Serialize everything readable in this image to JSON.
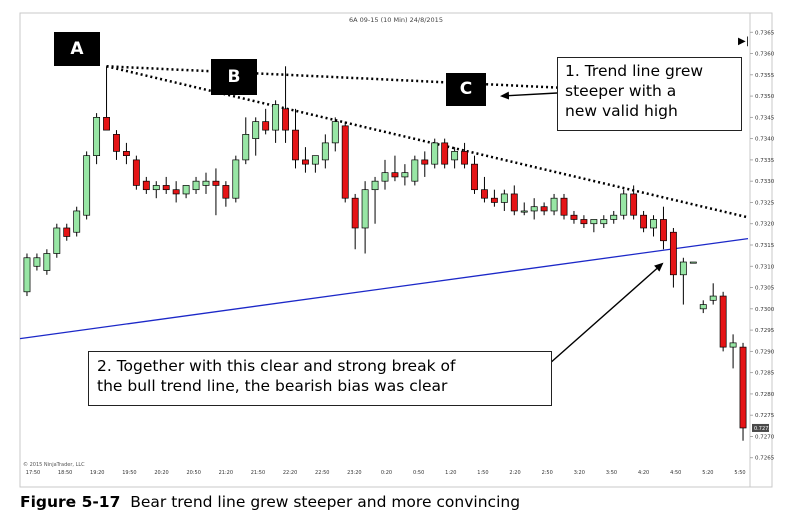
{
  "chart_data": {
    "type": "candlestick",
    "title": "6A 09-15 (10 Min)  24/8/2015",
    "xlabel": "",
    "ylabel": "",
    "ylim": [
      0.7264,
      0.7366
    ],
    "y_tick_labels": [
      "0.7365",
      "0.7360",
      "0.7355",
      "0.7350",
      "0.7345",
      "0.7340",
      "0.7335",
      "0.7330",
      "0.7325",
      "0.7320",
      "0.7315",
      "0.7310",
      "0.7305",
      "0.7300",
      "0.7295",
      "0.7290",
      "0.7285",
      "0.7280",
      "0.7275",
      "0.7270",
      "0.7265"
    ],
    "x_tick_labels": [
      "17:50",
      "18:50",
      "19:20",
      "19:50",
      "20:20",
      "20:50",
      "21:20",
      "21:50",
      "22:20",
      "22:50",
      "23:20",
      "0:20",
      "0:50",
      "1:20",
      "1:50",
      "2:20",
      "2:50",
      "3:20",
      "3:50",
      "4:20",
      "4:50",
      "5:20",
      "5:50"
    ],
    "copyright": "© 2015 NinjaTrader, LLC",
    "last_price_label": "0.7272",
    "candles": [
      {
        "o": 0.7304,
        "h": 0.7313,
        "l": 0.7303,
        "c": 0.7312
      },
      {
        "o": 0.731,
        "h": 0.7313,
        "l": 0.7309,
        "c": 0.7312
      },
      {
        "o": 0.7309,
        "h": 0.7314,
        "l": 0.7308,
        "c": 0.7313
      },
      {
        "o": 0.7313,
        "h": 0.732,
        "l": 0.7312,
        "c": 0.7319
      },
      {
        "o": 0.7319,
        "h": 0.732,
        "l": 0.7316,
        "c": 0.7317
      },
      {
        "o": 0.7318,
        "h": 0.7324,
        "l": 0.7317,
        "c": 0.7323
      },
      {
        "o": 0.7322,
        "h": 0.7337,
        "l": 0.7321,
        "c": 0.7336
      },
      {
        "o": 0.7336,
        "h": 0.7346,
        "l": 0.7334,
        "c": 0.7345
      },
      {
        "o": 0.7345,
        "h": 0.7357,
        "l": 0.7343,
        "c": 0.7342
      },
      {
        "o": 0.7341,
        "h": 0.7342,
        "l": 0.7335,
        "c": 0.7337
      },
      {
        "o": 0.7337,
        "h": 0.7339,
        "l": 0.7334,
        "c": 0.7336
      },
      {
        "o": 0.7335,
        "h": 0.7336,
        "l": 0.7328,
        "c": 0.7329
      },
      {
        "o": 0.733,
        "h": 0.7331,
        "l": 0.7327,
        "c": 0.7328
      },
      {
        "o": 0.7328,
        "h": 0.733,
        "l": 0.7326,
        "c": 0.7329
      },
      {
        "o": 0.7329,
        "h": 0.7331,
        "l": 0.7327,
        "c": 0.7328
      },
      {
        "o": 0.7328,
        "h": 0.733,
        "l": 0.7325,
        "c": 0.7327
      },
      {
        "o": 0.7327,
        "h": 0.7329,
        "l": 0.7326,
        "c": 0.7329
      },
      {
        "o": 0.7328,
        "h": 0.7331,
        "l": 0.7327,
        "c": 0.733
      },
      {
        "o": 0.7329,
        "h": 0.7332,
        "l": 0.7327,
        "c": 0.733
      },
      {
        "o": 0.733,
        "h": 0.7333,
        "l": 0.7322,
        "c": 0.7329
      },
      {
        "o": 0.7329,
        "h": 0.733,
        "l": 0.7324,
        "c": 0.7326
      },
      {
        "o": 0.7326,
        "h": 0.7336,
        "l": 0.7325,
        "c": 0.7335
      },
      {
        "o": 0.7335,
        "h": 0.7345,
        "l": 0.7334,
        "c": 0.7341
      },
      {
        "o": 0.734,
        "h": 0.7345,
        "l": 0.7336,
        "c": 0.7344
      },
      {
        "o": 0.7344,
        "h": 0.7347,
        "l": 0.7341,
        "c": 0.7342
      },
      {
        "o": 0.7342,
        "h": 0.7349,
        "l": 0.7339,
        "c": 0.7348
      },
      {
        "o": 0.7347,
        "h": 0.7357,
        "l": 0.7339,
        "c": 0.7342
      },
      {
        "o": 0.7342,
        "h": 0.7347,
        "l": 0.7333,
        "c": 0.7335
      },
      {
        "o": 0.7335,
        "h": 0.7338,
        "l": 0.7332,
        "c": 0.7334
      },
      {
        "o": 0.7334,
        "h": 0.7336,
        "l": 0.7332,
        "c": 0.7336
      },
      {
        "o": 0.7335,
        "h": 0.7341,
        "l": 0.7333,
        "c": 0.7339
      },
      {
        "o": 0.7339,
        "h": 0.7345,
        "l": 0.7337,
        "c": 0.7344
      },
      {
        "o": 0.7343,
        "h": 0.7344,
        "l": 0.7325,
        "c": 0.7326
      },
      {
        "o": 0.7326,
        "h": 0.7327,
        "l": 0.7314,
        "c": 0.7319
      },
      {
        "o": 0.7319,
        "h": 0.733,
        "l": 0.7313,
        "c": 0.7328
      },
      {
        "o": 0.7328,
        "h": 0.7331,
        "l": 0.732,
        "c": 0.733
      },
      {
        "o": 0.733,
        "h": 0.7335,
        "l": 0.7328,
        "c": 0.7332
      },
      {
        "o": 0.7332,
        "h": 0.7336,
        "l": 0.733,
        "c": 0.7331
      },
      {
        "o": 0.7331,
        "h": 0.7334,
        "l": 0.7329,
        "c": 0.7332
      },
      {
        "o": 0.733,
        "h": 0.7336,
        "l": 0.7329,
        "c": 0.7335
      },
      {
        "o": 0.7335,
        "h": 0.7337,
        "l": 0.7331,
        "c": 0.7334
      },
      {
        "o": 0.7334,
        "h": 0.734,
        "l": 0.7333,
        "c": 0.7339
      },
      {
        "o": 0.7339,
        "h": 0.734,
        "l": 0.7333,
        "c": 0.7334
      },
      {
        "o": 0.7335,
        "h": 0.7338,
        "l": 0.7333,
        "c": 0.7337
      },
      {
        "o": 0.7337,
        "h": 0.7339,
        "l": 0.7333,
        "c": 0.7334
      },
      {
        "o": 0.7334,
        "h": 0.7336,
        "l": 0.7327,
        "c": 0.7328
      },
      {
        "o": 0.7328,
        "h": 0.7331,
        "l": 0.7325,
        "c": 0.7326
      },
      {
        "o": 0.7326,
        "h": 0.7328,
        "l": 0.7324,
        "c": 0.7325
      },
      {
        "o": 0.7325,
        "h": 0.7328,
        "l": 0.7323,
        "c": 0.7327
      },
      {
        "o": 0.7327,
        "h": 0.7329,
        "l": 0.7322,
        "c": 0.7323
      },
      {
        "o": 0.7323,
        "h": 0.7325,
        "l": 0.7322,
        "c": 0.7323
      },
      {
        "o": 0.7323,
        "h": 0.7326,
        "l": 0.7321,
        "c": 0.7324
      },
      {
        "o": 0.7324,
        "h": 0.7325,
        "l": 0.7322,
        "c": 0.7323
      },
      {
        "o": 0.7323,
        "h": 0.7327,
        "l": 0.7322,
        "c": 0.7326
      },
      {
        "o": 0.7326,
        "h": 0.7327,
        "l": 0.7321,
        "c": 0.7322
      },
      {
        "o": 0.7322,
        "h": 0.7323,
        "l": 0.732,
        "c": 0.7321
      },
      {
        "o": 0.7321,
        "h": 0.7322,
        "l": 0.7319,
        "c": 0.732
      },
      {
        "o": 0.732,
        "h": 0.7321,
        "l": 0.7318,
        "c": 0.7321
      },
      {
        "o": 0.732,
        "h": 0.7322,
        "l": 0.7319,
        "c": 0.7321
      },
      {
        "o": 0.7321,
        "h": 0.7323,
        "l": 0.732,
        "c": 0.7322
      },
      {
        "o": 0.7322,
        "h": 0.7328,
        "l": 0.7321,
        "c": 0.7327
      },
      {
        "o": 0.7327,
        "h": 0.7329,
        "l": 0.7321,
        "c": 0.7322
      },
      {
        "o": 0.7322,
        "h": 0.7323,
        "l": 0.7318,
        "c": 0.7319
      },
      {
        "o": 0.7319,
        "h": 0.7322,
        "l": 0.7317,
        "c": 0.7321
      },
      {
        "o": 0.7321,
        "h": 0.7324,
        "l": 0.7314,
        "c": 0.7316
      },
      {
        "o": 0.7318,
        "h": 0.7319,
        "l": 0.7305,
        "c": 0.7308
      },
      {
        "o": 0.7308,
        "h": 0.7312,
        "l": 0.7301,
        "c": 0.7311
      },
      {
        "o": 0.7311,
        "h": 0.7311,
        "l": 0.7311,
        "c": 0.7311
      },
      {
        "o": 0.73,
        "h": 0.7302,
        "l": 0.7299,
        "c": 0.7301
      },
      {
        "o": 0.7302,
        "h": 0.7306,
        "l": 0.7301,
        "c": 0.7303
      },
      {
        "o": 0.7303,
        "h": 0.7304,
        "l": 0.729,
        "c": 0.7291
      },
      {
        "o": 0.7291,
        "h": 0.7294,
        "l": 0.7286,
        "c": 0.7292
      },
      {
        "o": 0.7291,
        "h": 0.7292,
        "l": 0.7269,
        "c": 0.7272
      }
    ],
    "annotations": {
      "labels": [
        "A",
        "B",
        "C"
      ],
      "note1": "1. Trend line grew\nsteeper with a\nnew valid high",
      "note2": "2. Together with this clear and strong break of\nthe bull trend line, the bearish bias was clear"
    },
    "colors": {
      "up": "#98e6a5",
      "down": "#e51416",
      "bull_trend_line": "#1c28c8",
      "bear_trend_line": "#000000"
    }
  },
  "caption": {
    "figure": "Figure 5-17",
    "text": "Bear trend line grew steeper and more convincing"
  }
}
